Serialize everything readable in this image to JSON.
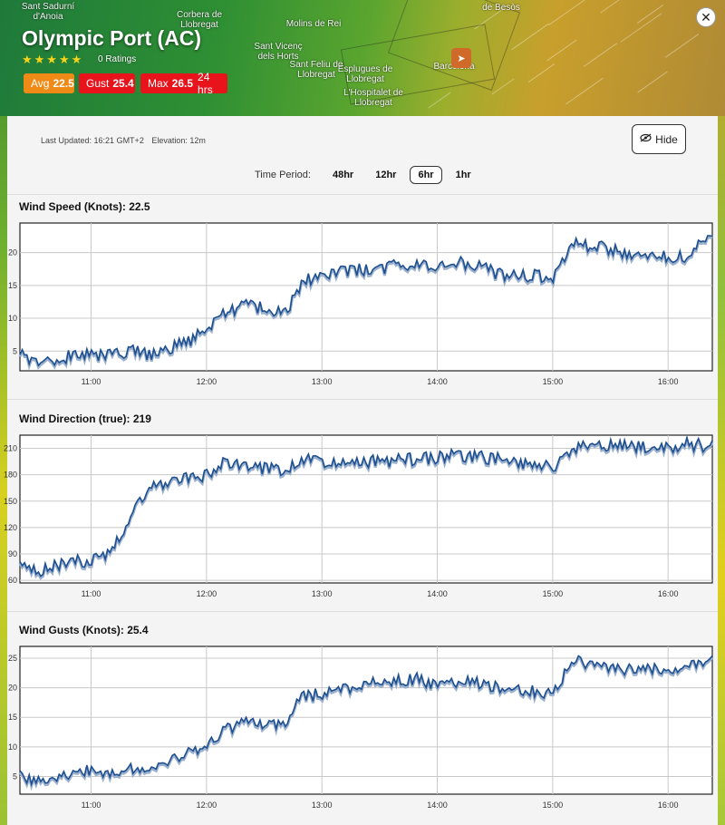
{
  "map": {
    "place_labels": [
      "Sant Sadurní d'Anoia",
      "Corbera de Llobregat",
      "Molins de Rei",
      "Sant Vicenç dels Horts",
      "Sant Feliu de Llobregat",
      "Esplugues de Llobregat",
      "L'Hospitalet de Llobregat",
      "Barcelona",
      "de Besòs"
    ],
    "location_icon": "navigation-arrow-icon"
  },
  "station": {
    "title": "Olympic Port (AC)",
    "stars": "★★★★★",
    "ratings": "0 Ratings",
    "badges": {
      "avg_label": "Avg",
      "avg_value": "22.5",
      "avg_color": "#f08a16",
      "gust_label": "Gust",
      "gust_value": "25.4",
      "gust_color": "#e8131b",
      "max_label": "Max",
      "max_value": "26.5",
      "max_suffix": "24 hrs",
      "max_color": "#e8131b"
    }
  },
  "panel": {
    "last_updated": "Last Updated: 16:21 GMT+2",
    "elevation": "Elevation: 12m",
    "hide_label": "Hide",
    "time_period_label": "Time Period:",
    "periods": [
      "48hr",
      "12hr",
      "6hr",
      "1hr"
    ],
    "active_period": "6hr"
  },
  "chart_data": [
    {
      "type": "line",
      "title": "Wind Speed (Knots): 22.5",
      "x_ticks": [
        "11:00",
        "12:00",
        "13:00",
        "14:00",
        "15:00",
        "16:00"
      ],
      "y_ticks": [
        5,
        10,
        15,
        20
      ],
      "xlim": [
        "10:23",
        "16:23"
      ],
      "ylim": [
        2,
        24.5
      ],
      "line_color": "#1d4f91",
      "series": [
        {
          "x_minutes_from_10_00": [
            23,
            30,
            40,
            50,
            60,
            70,
            80,
            90,
            100,
            110,
            120,
            130,
            140,
            150,
            160,
            170,
            180,
            190,
            200,
            210,
            220,
            230,
            240,
            250,
            260,
            270,
            280,
            290,
            300,
            310,
            320,
            330,
            340,
            350,
            360,
            370,
            380,
            383
          ],
          "values": [
            5,
            3.5,
            3,
            4.5,
            4.5,
            4.5,
            5,
            4.5,
            5.5,
            6.5,
            8,
            11,
            12,
            11.5,
            10.5,
            15.5,
            16.5,
            17,
            17.5,
            17.5,
            18,
            18.5,
            17.5,
            18.5,
            18,
            17,
            16.5,
            16.5,
            16,
            21.5,
            21,
            20.5,
            19.5,
            20,
            19.5,
            19.5,
            22,
            22.5
          ]
        }
      ]
    },
    {
      "type": "line",
      "title": "Wind Direction (true): 219",
      "x_ticks": [
        "11:00",
        "12:00",
        "13:00",
        "14:00",
        "15:00",
        "16:00"
      ],
      "y_ticks": [
        60,
        90,
        120,
        150,
        180,
        210
      ],
      "xlim": [
        "10:23",
        "16:23"
      ],
      "ylim": [
        57,
        225
      ],
      "line_color": "#1d4f91",
      "series": [
        {
          "x_minutes_from_10_00": [
            23,
            30,
            40,
            50,
            60,
            70,
            80,
            90,
            100,
            110,
            120,
            130,
            140,
            150,
            160,
            170,
            180,
            190,
            200,
            210,
            220,
            230,
            240,
            250,
            260,
            270,
            280,
            290,
            300,
            310,
            320,
            330,
            340,
            350,
            360,
            370,
            380,
            383
          ],
          "values": [
            75,
            70,
            75,
            85,
            80,
            95,
            130,
            165,
            170,
            175,
            180,
            195,
            190,
            187,
            185,
            200,
            195,
            193,
            195,
            195,
            197,
            198,
            200,
            202,
            200,
            198,
            195,
            190,
            188,
            210,
            212,
            213,
            214,
            210,
            212,
            215,
            213,
            219
          ]
        }
      ]
    },
    {
      "type": "line",
      "title": "Wind Gusts (Knots): 25.4",
      "x_ticks": [
        "11:00",
        "12:00",
        "13:00",
        "14:00",
        "15:00",
        "16:00"
      ],
      "y_ticks": [
        5,
        10,
        15,
        20,
        25
      ],
      "xlim": [
        "10:23",
        "16:23"
      ],
      "ylim": [
        2,
        27
      ],
      "line_color": "#1d4f91",
      "series": [
        {
          "x_minutes_from_10_00": [
            23,
            30,
            40,
            50,
            60,
            70,
            80,
            90,
            100,
            110,
            120,
            130,
            140,
            150,
            160,
            170,
            180,
            190,
            200,
            210,
            220,
            230,
            240,
            250,
            260,
            270,
            280,
            290,
            300,
            310,
            320,
            330,
            340,
            350,
            360,
            370,
            380,
            383
          ],
          "values": [
            6,
            4,
            4.5,
            5.5,
            6,
            6,
            6.5,
            6,
            7.5,
            9,
            10,
            13,
            14,
            14,
            13.5,
            18.5,
            19,
            19.5,
            20,
            21,
            21.5,
            21.5,
            20.5,
            21,
            21,
            20,
            19.5,
            19.5,
            19,
            24.5,
            24,
            23.5,
            23,
            23,
            23.5,
            23.5,
            24.5,
            25.4
          ]
        }
      ]
    }
  ]
}
